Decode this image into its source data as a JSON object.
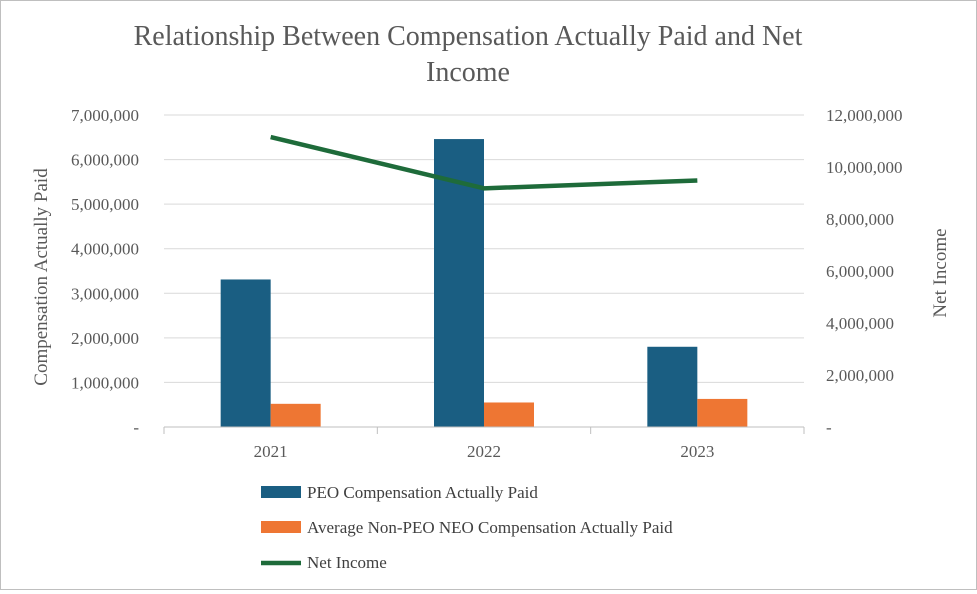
{
  "chart_data": {
    "type": "bar",
    "title_lines": [
      "Relationship Between Compensation Actually Paid and Net",
      "Income"
    ],
    "categories": [
      "2021",
      "2022",
      "2023"
    ],
    "series": [
      {
        "name": "PEO Compensation Actually Paid",
        "kind": "bar",
        "axis": "left",
        "color": "#1a5e82",
        "values": [
          3310000,
          6460000,
          1800000
        ]
      },
      {
        "name": "Average Non-PEO NEO Compensation Actually Paid",
        "kind": "bar",
        "axis": "left",
        "color": "#ee7633",
        "values": [
          520000,
          550000,
          630000
        ]
      },
      {
        "name": "Net Income",
        "kind": "line",
        "axis": "right",
        "color": "#1e6b3a",
        "values": [
          11150000,
          9180000,
          9480000
        ]
      }
    ],
    "y_left": {
      "label": "Compensation Actually Paid",
      "ylim": [
        0,
        7000000
      ],
      "ticks": [
        "-",
        "1,000,000",
        "2,000,000",
        "3,000,000",
        "4,000,000",
        "5,000,000",
        "6,000,000",
        "7,000,000"
      ]
    },
    "y_right": {
      "label": "Net Income",
      "ylim": [
        0,
        12000000
      ],
      "ticks": [
        "-",
        "2,000,000",
        "4,000,000",
        "6,000,000",
        "8,000,000",
        "10,000,000",
        "12,000,000"
      ]
    },
    "legend_position": "bottom",
    "gridlines": true
  }
}
